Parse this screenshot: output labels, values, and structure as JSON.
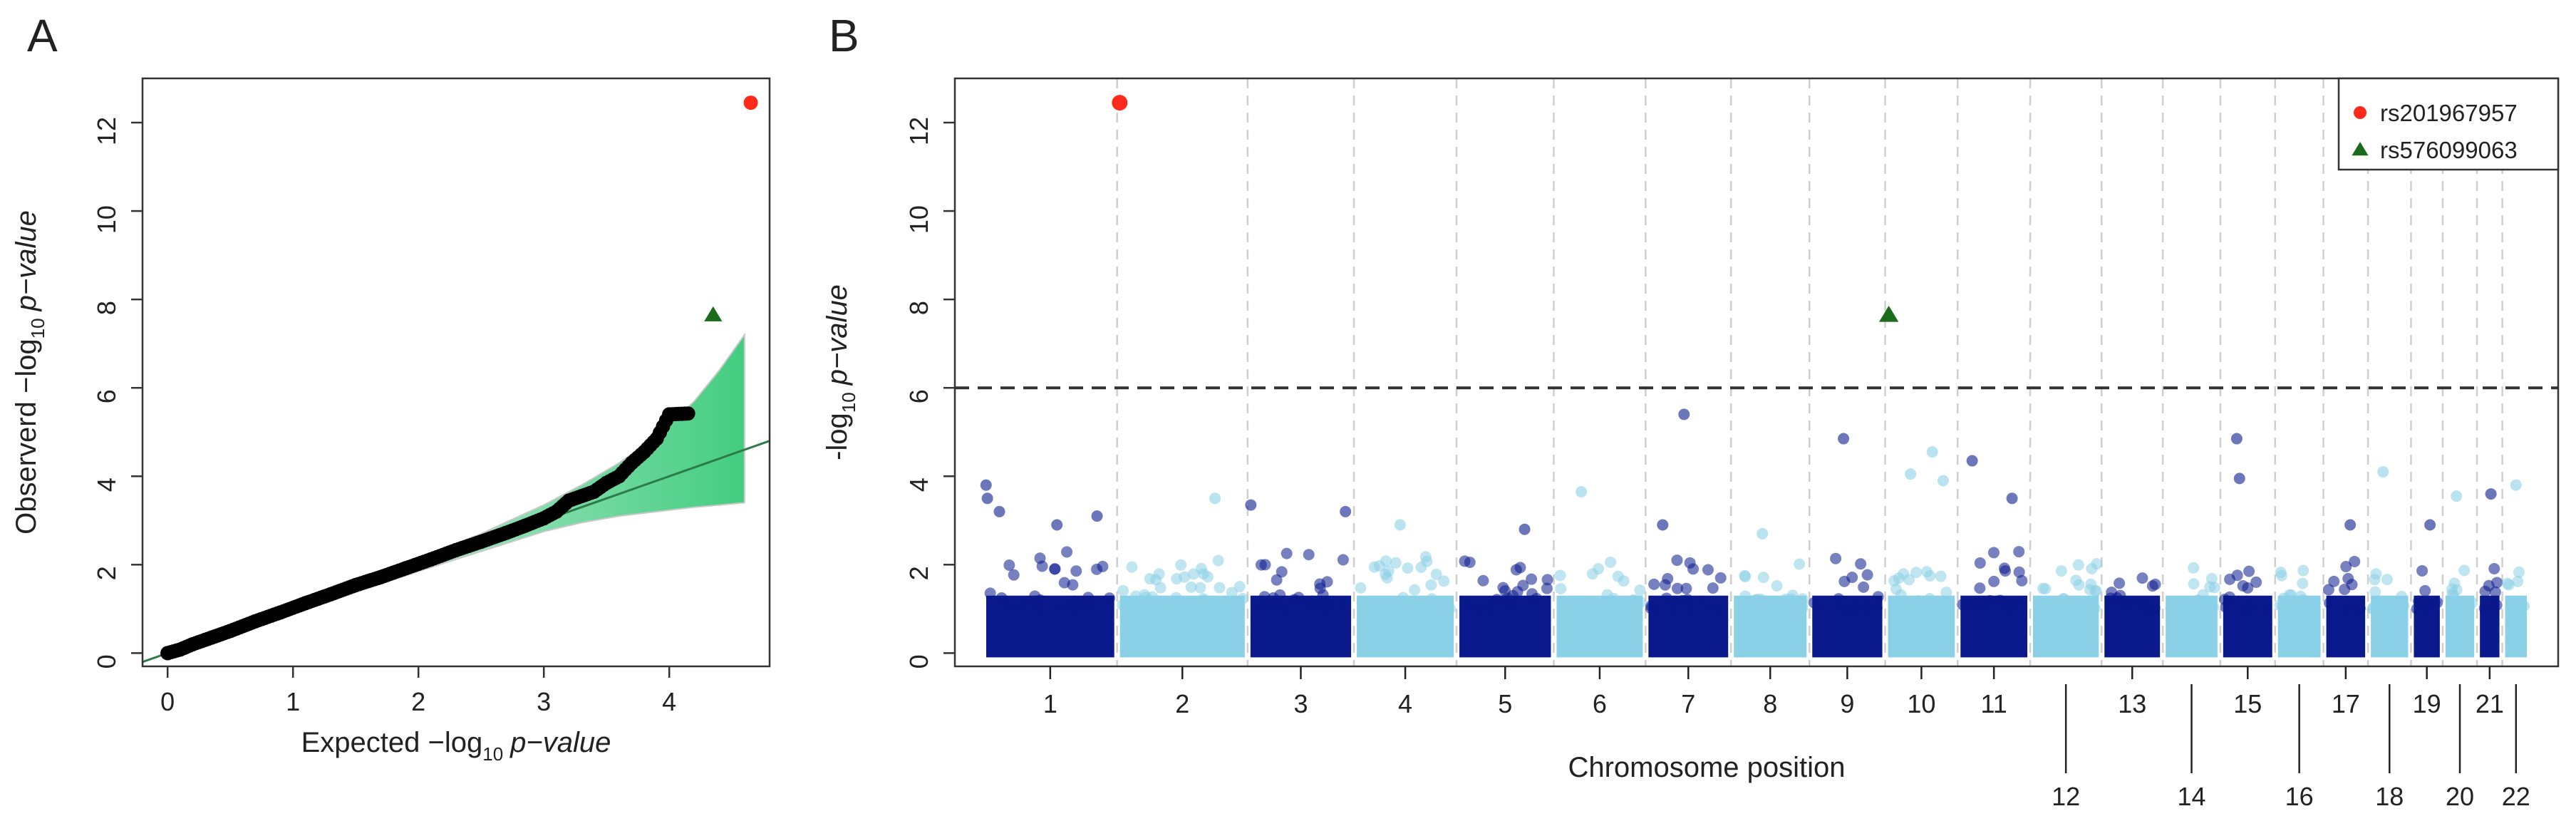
{
  "colors": {
    "highlight_red": "#ff2a1a",
    "highlight_green": "#1a6b1a",
    "chrom_dark": "#0a1a8c",
    "chrom_light": "#8ad0e6",
    "qq_points": "#000000",
    "ci_band": "#22c46a",
    "threshold_line": "#333333"
  },
  "chart_data": [
    {
      "panel": "A",
      "type": "scatter",
      "xlabel_prefix": "Expected −log",
      "xlabel_sub": "10",
      "xlabel_suffix": "p−value",
      "ylabel_prefix": "Observerd −log",
      "ylabel_sub": "10",
      "ylabel_suffix": "p−value",
      "xlim": [
        -0.2,
        4.8
      ],
      "ylim": [
        -0.3,
        13.0
      ],
      "xticks": [
        0,
        1,
        2,
        3,
        4
      ],
      "yticks": [
        0,
        2,
        4,
        6,
        8,
        10,
        12
      ],
      "reference_line": {
        "slope": 1.0,
        "intercept": 0
      },
      "qq_series": {
        "name": "",
        "x": [
          0.0,
          0.1,
          0.2,
          0.35,
          0.5,
          0.7,
          0.9,
          1.1,
          1.3,
          1.5,
          1.7,
          1.9,
          2.1,
          2.3,
          2.5,
          2.7,
          2.85,
          3.0,
          3.1,
          3.2,
          3.3,
          3.4,
          3.5,
          3.6,
          3.7,
          3.8,
          3.9,
          4.0,
          4.15
        ],
        "y": [
          0.0,
          0.08,
          0.2,
          0.35,
          0.5,
          0.72,
          0.92,
          1.13,
          1.33,
          1.54,
          1.72,
          1.92,
          2.12,
          2.33,
          2.52,
          2.72,
          2.88,
          3.05,
          3.2,
          3.45,
          3.55,
          3.65,
          3.85,
          4.0,
          4.3,
          4.55,
          4.85,
          5.4,
          5.42
        ]
      },
      "ci_band": {
        "x": [
          0,
          1,
          2,
          2.5,
          3.0,
          3.3,
          3.6,
          3.9,
          4.2,
          4.4,
          4.6
        ],
        "lower": [
          0,
          0.9,
          1.85,
          2.3,
          2.75,
          2.95,
          3.1,
          3.2,
          3.3,
          3.35,
          3.4
        ],
        "upper": [
          0,
          1.1,
          2.15,
          2.7,
          3.35,
          3.8,
          4.3,
          4.9,
          5.7,
          6.4,
          7.2
        ]
      },
      "highlights": [
        {
          "snp": "rs201967957",
          "x": 4.65,
          "y": 12.45,
          "shape": "circle",
          "color": "#ff2a1a"
        },
        {
          "snp": "rs576099063",
          "x": 4.35,
          "y": 7.65,
          "shape": "triangle",
          "color": "#1a6b1a"
        }
      ]
    },
    {
      "panel": "B",
      "type": "scatter",
      "subtype": "manhattan",
      "xlabel": "Chromosome position",
      "ylabel_prefix": "-log",
      "ylabel_sub": "10",
      "ylabel_suffix": "p−value",
      "ylim": [
        -0.3,
        13.0
      ],
      "yticks": [
        0,
        2,
        4,
        6,
        8,
        10,
        12
      ],
      "significance_threshold": 6.0,
      "grid": "dashed vertical lines at chromosome boundaries",
      "chromosomes": [
        "1",
        "2",
        "3",
        "4",
        "5",
        "6",
        "7",
        "8",
        "9",
        "10",
        "11",
        "12",
        "13",
        "14",
        "15",
        "16",
        "17",
        "18",
        "19",
        "20",
        "21",
        "22"
      ],
      "chromosome_lengths_mb": [
        249,
        243,
        198,
        191,
        181,
        171,
        159,
        146,
        141,
        135,
        135,
        133,
        114,
        107,
        102,
        90,
        83,
        80,
        59,
        64,
        47,
        51
      ],
      "background_max": [
        2.3,
        2.1,
        2.3,
        2.2,
        2.1,
        2.1,
        2.2,
        2.1,
        2.2,
        2.1,
        2.3,
        2.1,
        2.0,
        2.0,
        2.1,
        2.0,
        2.4,
        2.3,
        2.1,
        2.1,
        2.0,
        2.0
      ],
      "top_hits": [
        {
          "chr": "1",
          "pos_frac": 0.02,
          "y": 3.8
        },
        {
          "chr": "1",
          "pos_frac": 0.03,
          "y": 3.5
        },
        {
          "chr": "1",
          "pos_frac": 0.12,
          "y": 3.2
        },
        {
          "chr": "1",
          "pos_frac": 0.55,
          "y": 2.9
        },
        {
          "chr": "1",
          "pos_frac": 0.85,
          "y": 3.1
        },
        {
          "chr": "2",
          "pos_frac": 0.75,
          "y": 3.5
        },
        {
          "chr": "3",
          "pos_frac": 0.03,
          "y": 3.35
        },
        {
          "chr": "3",
          "pos_frac": 0.92,
          "y": 3.2
        },
        {
          "chr": "4",
          "pos_frac": 0.45,
          "y": 2.9
        },
        {
          "chr": "5",
          "pos_frac": 0.7,
          "y": 2.8
        },
        {
          "chr": "6",
          "pos_frac": 0.3,
          "y": 3.65
        },
        {
          "chr": "7",
          "pos_frac": 0.45,
          "y": 5.4
        },
        {
          "chr": "7",
          "pos_frac": 0.2,
          "y": 2.9
        },
        {
          "chr": "8",
          "pos_frac": 0.4,
          "y": 2.7
        },
        {
          "chr": "9",
          "pos_frac": 0.45,
          "y": 4.85
        },
        {
          "chr": "10",
          "pos_frac": 0.35,
          "y": 4.05
        },
        {
          "chr": "10",
          "pos_frac": 0.65,
          "y": 4.55
        },
        {
          "chr": "10",
          "pos_frac": 0.8,
          "y": 3.9
        },
        {
          "chr": "11",
          "pos_frac": 0.2,
          "y": 4.35
        },
        {
          "chr": "11",
          "pos_frac": 0.75,
          "y": 3.5
        },
        {
          "chr": "15",
          "pos_frac": 0.3,
          "y": 4.85
        },
        {
          "chr": "15",
          "pos_frac": 0.35,
          "y": 3.95
        },
        {
          "chr": "17",
          "pos_frac": 0.6,
          "y": 2.9
        },
        {
          "chr": "18",
          "pos_frac": 0.35,
          "y": 4.1
        },
        {
          "chr": "19",
          "pos_frac": 0.6,
          "y": 2.9
        },
        {
          "chr": "20",
          "pos_frac": 0.4,
          "y": 3.55
        },
        {
          "chr": "21",
          "pos_frac": 0.55,
          "y": 3.6
        },
        {
          "chr": "22",
          "pos_frac": 0.5,
          "y": 3.8
        }
      ],
      "highlights": [
        {
          "snp": "rs201967957",
          "chr": "2",
          "pos_frac": 0.02,
          "y": 12.45,
          "shape": "circle",
          "color": "#ff2a1a"
        },
        {
          "snp": "rs576099063",
          "chr": "10",
          "pos_frac": 0.05,
          "y": 7.65,
          "shape": "triangle",
          "color": "#1a6b1a"
        }
      ],
      "legend": {
        "placement": "top-right",
        "entries": [
          {
            "label": "rs201967957",
            "shape": "circle",
            "color": "#ff2a1a"
          },
          {
            "label": "rs576099063",
            "shape": "triangle",
            "color": "#1a6b1a"
          }
        ]
      }
    }
  ],
  "panel_labels": {
    "a": "A",
    "b": "B"
  }
}
